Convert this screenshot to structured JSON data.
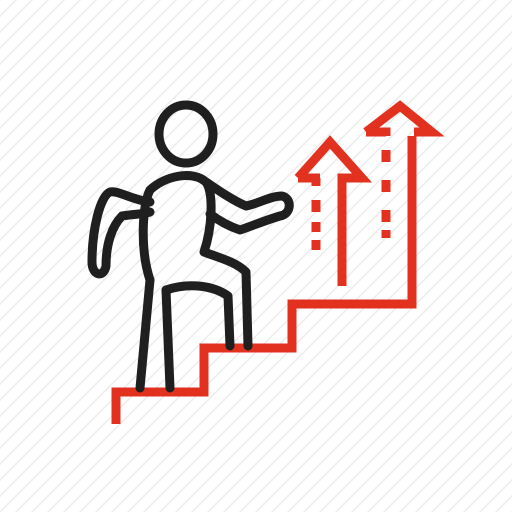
{
  "icon": {
    "name": "career-growth-stairs-icon",
    "colors": {
      "background": "#ffffff",
      "stripes": "#ececec",
      "figure": "#1f1f1f",
      "accent": "#e2321f"
    }
  }
}
